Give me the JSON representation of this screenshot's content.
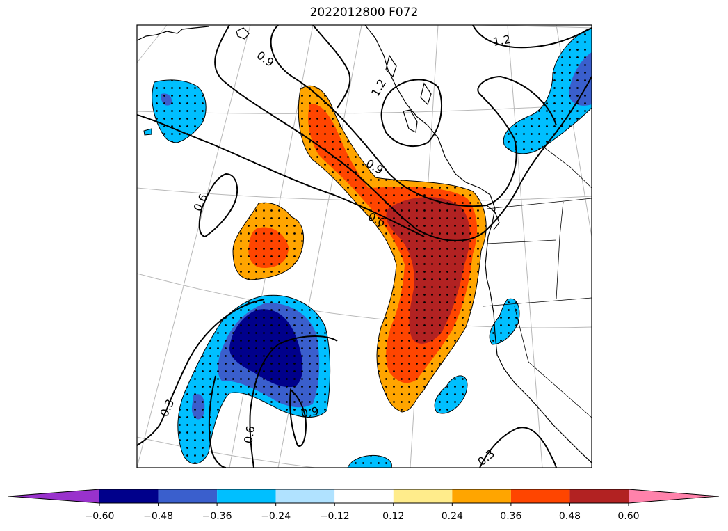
{
  "title": "2022012800 F072",
  "colorbar": {
    "levels": [
      "−0.60",
      "−0.48",
      "−0.36",
      "−0.24",
      "−0.12",
      "0.12",
      "0.24",
      "0.36",
      "0.48",
      "0.60"
    ],
    "colors": [
      "#9932cc",
      "#00008b",
      "#3a5fcd",
      "#00bfff",
      "#b0e2ff",
      "#ffffff",
      "#ffec8b",
      "#ffa500",
      "#ff4500",
      "#b22222",
      "#ff82ab"
    ]
  },
  "contour_labels": [
    "0.9",
    "1.2",
    "1.2",
    "0.9",
    "0.6",
    "0.6",
    "0.3",
    "0.6",
    "0.9",
    "0.3"
  ]
}
